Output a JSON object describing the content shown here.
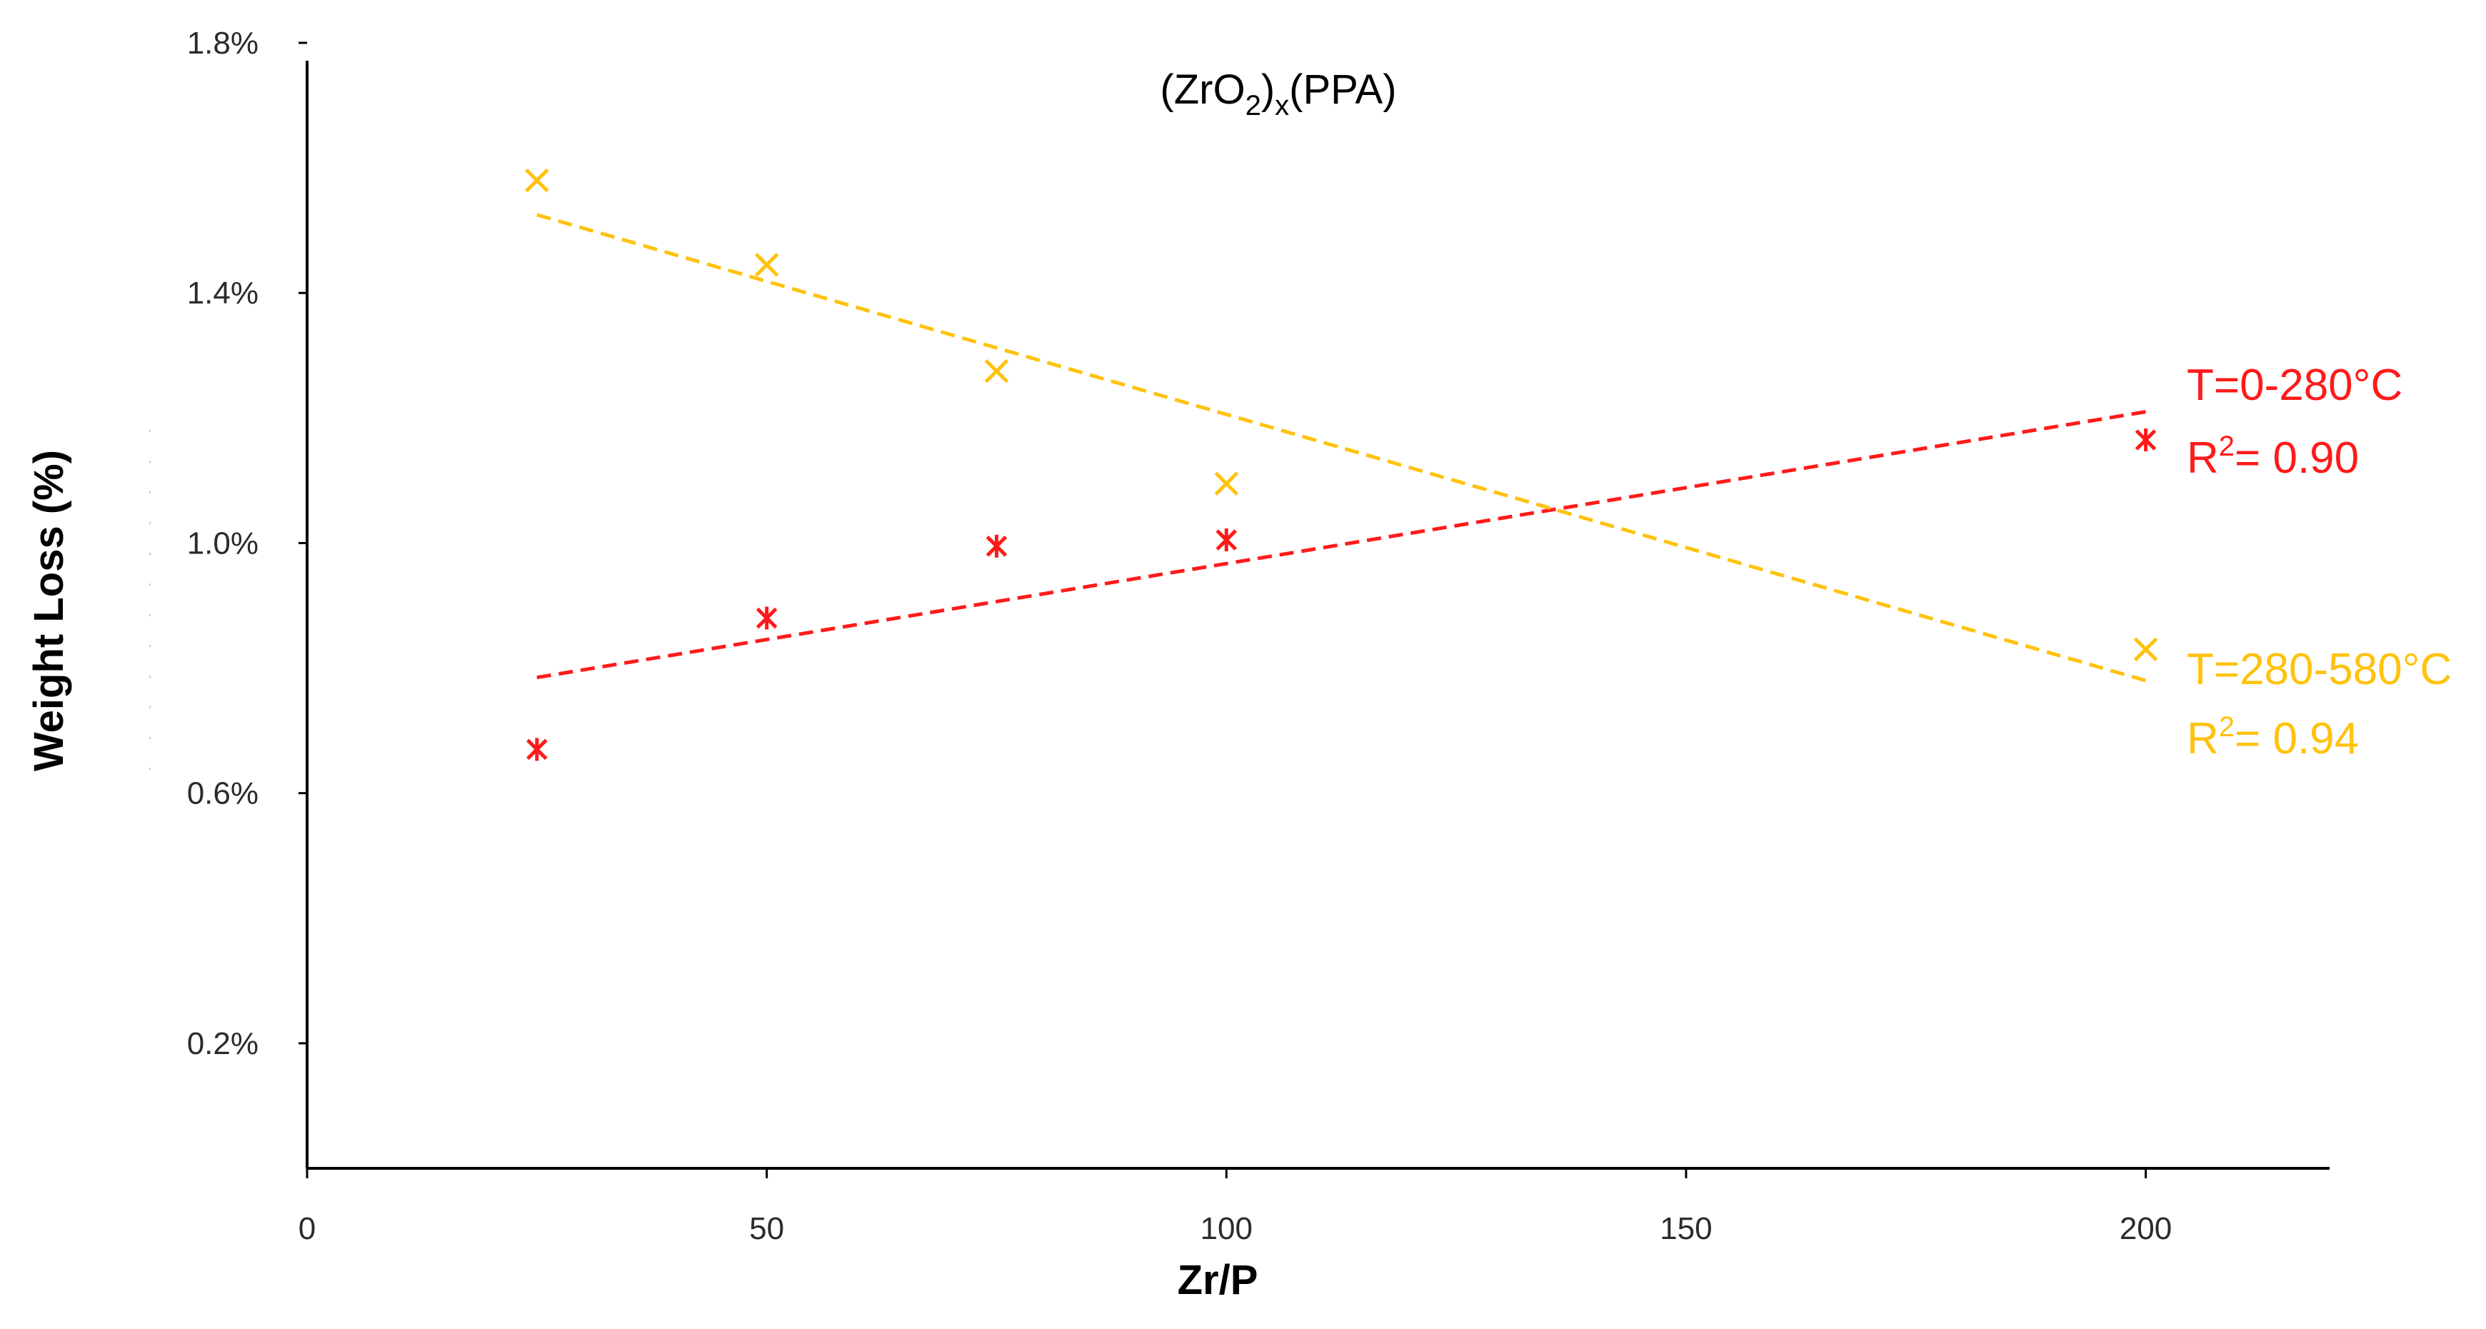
{
  "chart_data": {
    "type": "scatter",
    "title_parts": {
      "open": "(ZrO",
      "sub2": "2",
      "close": ")",
      "subx": "x",
      "tail": "(PPA)"
    },
    "xlabel": "Zr/P",
    "ylabel": "Weight Loss (%)",
    "xlim": [
      0,
      220
    ],
    "ylim": [
      0.0,
      1.8
    ],
    "x_ticks": [
      0,
      50,
      100,
      150,
      200
    ],
    "x_tick_labels": [
      "0",
      "50",
      "100",
      "150",
      "200"
    ],
    "y_ticks": [
      0.2,
      0.6,
      1.0,
      1.4,
      1.8
    ],
    "y_tick_labels": [
      "0.2%",
      "0.6%",
      "1.0%",
      "1.4%",
      "1.8%"
    ],
    "grid": false,
    "series": [
      {
        "name": "T=0-280°C",
        "r2_label": "R",
        "r2_sup": "2",
        "r2_value": "= 0.90",
        "color": "#ff1a1a",
        "marker": "asterisk",
        "x": [
          25,
          50,
          75,
          100,
          200
        ],
        "y": [
          0.67,
          0.88,
          0.995,
          1.005,
          1.165
        ],
        "trend": {
          "x": [
            25,
            200
          ],
          "y": [
            0.785,
            1.21
          ]
        }
      },
      {
        "name": "T=280-580°C",
        "r2_label": "R",
        "r2_sup": "2",
        "r2_value": "= 0.94",
        "color": "#ffc20e",
        "marker": "x",
        "x": [
          25,
          50,
          75,
          100,
          200
        ],
        "y": [
          1.58,
          1.445,
          1.275,
          1.095,
          0.83
        ],
        "trend": {
          "x": [
            25,
            200
          ],
          "y": [
            1.525,
            0.78
          ]
        }
      }
    ]
  }
}
